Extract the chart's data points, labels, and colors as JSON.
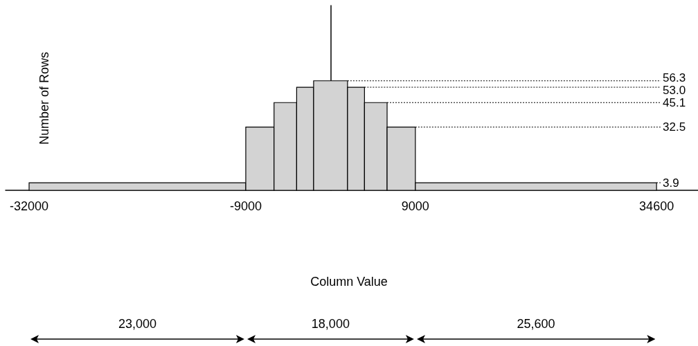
{
  "chart_data": {
    "type": "histogram",
    "xlabel": "Column Value",
    "ylabel": "Number of Rows",
    "bins": [
      -32000,
      -9000,
      -6000,
      -3600,
      -1800,
      1800,
      3600,
      6000,
      9000,
      34600
    ],
    "values": [
      3.9,
      32.5,
      45.1,
      53.0,
      56.3,
      53.0,
      45.1,
      32.5,
      3.9
    ],
    "color": "#d3d3d3",
    "xlim": [
      -34500,
      39000
    ],
    "xticks": [
      -32000,
      -9000,
      9000,
      34600
    ],
    "ylim": [
      0,
      95
    ],
    "tick_labels": "x",
    "grid": false,
    "ref_lines": [
      {
        "axis": "y",
        "value": 56.3,
        "label": "56.3",
        "line_style": "dotted"
      },
      {
        "axis": "y",
        "value": 53.0,
        "label": "53.0",
        "line_style": "dotted"
      },
      {
        "axis": "y",
        "value": 45.1,
        "label": "45.1",
        "line_style": "dotted"
      },
      {
        "axis": "y",
        "value": 32.5,
        "label": "32.5",
        "line_style": "dotted"
      },
      {
        "axis": "y",
        "value": 3.9,
        "label": "3.9",
        "line_style": "dotted"
      }
    ],
    "annotations": [
      "23,000",
      "18,000",
      "25,600"
    ]
  }
}
